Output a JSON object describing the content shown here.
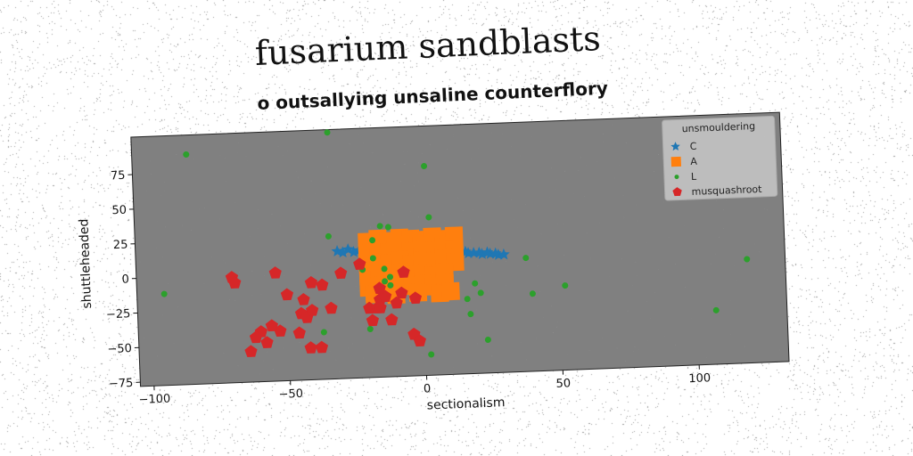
{
  "chart_data": {
    "type": "scatter",
    "title": "fusarium sandblasts",
    "subtitle": "o outsallying unsaline counterflory",
    "xlabel": "sectionalism",
    "ylabel": "shuttleheaded",
    "xlim": [
      -105,
      133
    ],
    "ylim": [
      -78,
      102
    ],
    "xticks": [
      -100,
      -50,
      0,
      50,
      100
    ],
    "yticks": [
      -75,
      -50,
      -25,
      0,
      25,
      50,
      75
    ],
    "xtick_labels": [
      "−100",
      "−50",
      "0",
      "50",
      "100"
    ],
    "ytick_labels": [
      "−75",
      "−50",
      "−25",
      "0",
      "25",
      "50",
      "75"
    ],
    "grid": false,
    "plot_background": "#808080",
    "legend": {
      "title": "unsmouldering",
      "position": "top-right"
    },
    "series": [
      {
        "name": "C",
        "marker": "star",
        "color": "#1f77b4",
        "points": [
          [
            -31,
            14
          ],
          [
            -29,
            13
          ],
          [
            -27,
            15
          ],
          [
            -25,
            13
          ],
          [
            -23,
            14
          ],
          [
            -19,
            18
          ],
          [
            -15,
            19
          ],
          [
            -11,
            20
          ],
          [
            -7,
            21
          ],
          [
            -3,
            20
          ],
          [
            1,
            19
          ],
          [
            5,
            16
          ],
          [
            9,
            13
          ],
          [
            13,
            11
          ],
          [
            16,
            10
          ],
          [
            19,
            9
          ],
          [
            22,
            8
          ],
          [
            25,
            8
          ],
          [
            28,
            7
          ],
          [
            30,
            7
          ],
          [
            -21,
            12
          ],
          [
            -17,
            16
          ],
          [
            -13,
            17
          ],
          [
            -9,
            17
          ],
          [
            17,
            9
          ],
          [
            21,
            9
          ],
          [
            24,
            9
          ],
          [
            27,
            8
          ]
        ]
      },
      {
        "name": "A",
        "marker": "square",
        "color": "#ff7f0e",
        "points": [
          [
            -20,
            20
          ],
          [
            -16,
            22
          ],
          [
            -12,
            20
          ],
          [
            -8,
            22
          ],
          [
            -4,
            21
          ],
          [
            0,
            20
          ],
          [
            4,
            22
          ],
          [
            8,
            20
          ],
          [
            12,
            22
          ],
          [
            -20,
            12
          ],
          [
            -16,
            14
          ],
          [
            -12,
            12
          ],
          [
            -8,
            14
          ],
          [
            -4,
            12
          ],
          [
            0,
            13
          ],
          [
            4,
            12
          ],
          [
            8,
            14
          ],
          [
            12,
            12
          ],
          [
            -20,
            3
          ],
          [
            -16,
            5
          ],
          [
            -12,
            4
          ],
          [
            -8,
            6
          ],
          [
            -4,
            3
          ],
          [
            0,
            5
          ],
          [
            4,
            4
          ],
          [
            8,
            6
          ],
          [
            12,
            3
          ],
          [
            -20,
            -5
          ],
          [
            -16,
            -4
          ],
          [
            -12,
            -6
          ],
          [
            -8,
            -3
          ],
          [
            -4,
            -5
          ],
          [
            0,
            -4
          ],
          [
            4,
            -6
          ],
          [
            8,
            -4
          ],
          [
            -20,
            -13
          ],
          [
            -16,
            -12
          ],
          [
            -12,
            -14
          ],
          [
            -8,
            -11
          ],
          [
            -4,
            -13
          ],
          [
            0,
            -12
          ],
          [
            4,
            -14
          ],
          [
            8,
            -12
          ],
          [
            -18,
            -18
          ],
          [
            -10,
            -19
          ],
          [
            -2,
            -18
          ],
          [
            6,
            -19
          ],
          [
            10,
            -18
          ]
        ]
      },
      {
        "name": "L",
        "marker": "circle",
        "color": "#2ca02c",
        "points": [
          [
            -85,
            88
          ],
          [
            -33,
            100
          ],
          [
            2,
            73
          ],
          [
            -34,
            25
          ],
          [
            -15,
            31
          ],
          [
            -12,
            30
          ],
          [
            3,
            36
          ],
          [
            -18,
            21
          ],
          [
            -18,
            8
          ],
          [
            -14,
            -9
          ],
          [
            -14,
            0
          ],
          [
            -12,
            -6
          ],
          [
            -12,
            -12
          ],
          [
            -22,
            0
          ],
          [
            -95,
            -12
          ],
          [
            -37,
            -44
          ],
          [
            -20,
            -43
          ],
          [
            16,
            -24
          ],
          [
            17,
            -35
          ],
          [
            19,
            -13
          ],
          [
            21,
            -20
          ],
          [
            23,
            -54
          ],
          [
            2,
            -63
          ],
          [
            38,
            4
          ],
          [
            40,
            -22
          ],
          [
            52,
            -17
          ],
          [
            107,
            -39
          ],
          [
            119,
            -3
          ]
        ]
      },
      {
        "name": "musquashroot",
        "marker": "pentagon",
        "color": "#d62728",
        "points": [
          [
            -70,
            -2
          ],
          [
            -69,
            -6
          ],
          [
            -54,
            0
          ],
          [
            -50,
            -16
          ],
          [
            -44,
            -20
          ],
          [
            -45,
            -30
          ],
          [
            -43,
            -33
          ],
          [
            -41,
            -28
          ],
          [
            -46,
            -44
          ],
          [
            -53,
            -42
          ],
          [
            -56,
            -38
          ],
          [
            -60,
            -42
          ],
          [
            -62,
            -46
          ],
          [
            -58,
            -50
          ],
          [
            -64,
            -56
          ],
          [
            -42,
            -55
          ],
          [
            -38,
            -55
          ],
          [
            -41,
            -8
          ],
          [
            -37,
            -10
          ],
          [
            -34,
            -27
          ],
          [
            -30,
            -2
          ],
          [
            -23,
            4
          ],
          [
            -20,
            -28
          ],
          [
            -17,
            -28
          ],
          [
            -19,
            -37
          ],
          [
            -16,
            -22
          ],
          [
            -14,
            -20
          ],
          [
            -16,
            -28
          ],
          [
            -12,
            -37
          ],
          [
            -10,
            -25
          ],
          [
            -16,
            -14
          ],
          [
            -8,
            -18
          ],
          [
            -7,
            -3
          ],
          [
            -4,
            -48
          ],
          [
            -2,
            -53
          ],
          [
            -3,
            -22
          ]
        ]
      }
    ]
  }
}
